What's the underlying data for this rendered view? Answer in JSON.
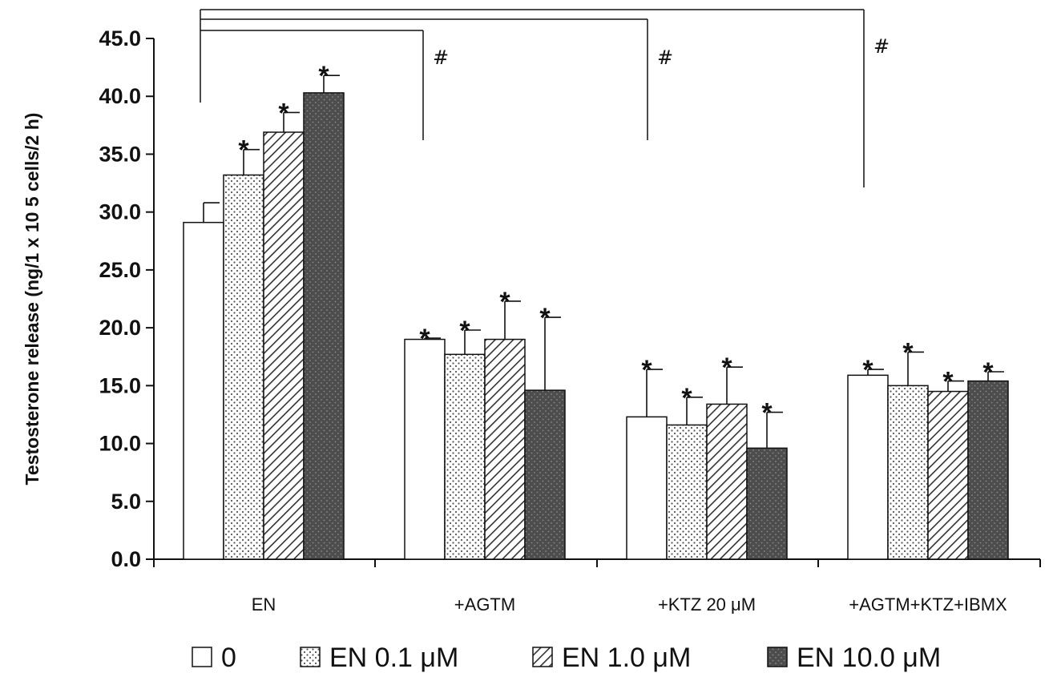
{
  "chart_data": {
    "type": "bar",
    "ylabel": "Testosterone release (ng/1 x 10 5 cells/2 h)",
    "ylim": [
      0,
      45
    ],
    "yticks": [
      "0.0",
      "5.0",
      "10.0",
      "15.0",
      "20.0",
      "25.0",
      "30.0",
      "35.0",
      "40.0",
      "45.0"
    ],
    "categories": [
      "EN",
      "+AGTM",
      "+KTZ 20 μM",
      "+AGTM+KTZ+IBMX"
    ],
    "legend_position": "bottom",
    "series": [
      {
        "name": "0",
        "pattern": "white",
        "values": [
          29.1,
          19.0,
          12.3,
          15.9
        ],
        "errors": [
          1.7,
          0.1,
          4.1,
          0.5
        ]
      },
      {
        "name": "EN 0.1 μM",
        "pattern": "dots",
        "values": [
          33.2,
          17.7,
          11.6,
          15.0
        ],
        "errors": [
          2.2,
          2.1,
          2.4,
          2.9
        ]
      },
      {
        "name": "EN 1.0 μM",
        "pattern": "hatch",
        "values": [
          36.9,
          19.0,
          13.4,
          14.5
        ],
        "errors": [
          1.7,
          3.3,
          3.2,
          0.9
        ]
      },
      {
        "name": "EN 10.0 μM",
        "pattern": "dark",
        "values": [
          40.3,
          14.6,
          9.6,
          15.4
        ],
        "errors": [
          1.5,
          6.3,
          3.1,
          0.8
        ]
      }
    ],
    "significance_star": "*",
    "stars": [
      [
        false,
        true,
        true,
        true
      ],
      [
        true,
        true,
        true,
        true
      ],
      [
        true,
        true,
        true,
        true
      ],
      [
        true,
        true,
        true,
        true
      ]
    ],
    "comparison_marker": "#",
    "comparisons": [
      {
        "from": "EN",
        "to": "+AGTM",
        "marker": "#"
      },
      {
        "from": "EN",
        "to": "+KTZ 20 μM",
        "marker": "#"
      },
      {
        "from": "EN",
        "to": "+AGTM+KTZ+IBMX",
        "marker": "#"
      }
    ]
  }
}
